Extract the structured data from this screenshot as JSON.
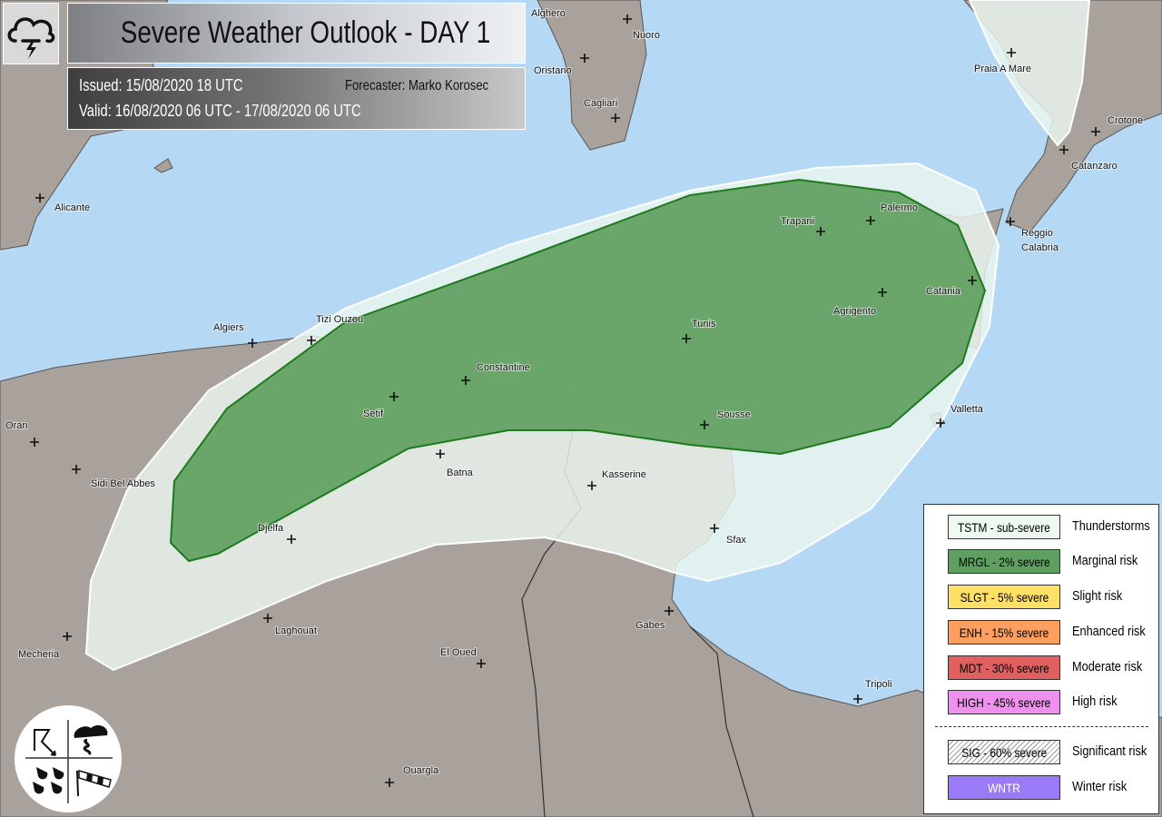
{
  "header": {
    "title": "Severe Weather Outlook - DAY 1",
    "issued": "Issued: 15/08/2020 18 UTC",
    "forecaster": "Forecaster: Marko Korosec",
    "valid": "Valid: 16/08/2020 06 UTC - 17/08/2020 06 UTC",
    "icon": "thunderstorm-cloud-icon"
  },
  "colors": {
    "sea": "#b5d8f5",
    "land": "#a9a19b",
    "tstm": "#eaf7ef",
    "mrgl": "#5fa05f",
    "mrgl_outline": "#1e7a1e"
  },
  "map": {
    "risk_areas": [
      {
        "category": "TSTM",
        "region": "western Algeria to Sicily and Malta"
      },
      {
        "category": "TSTM",
        "region": "Calabria"
      },
      {
        "category": "MRGL",
        "region": "northern Algeria, Tunisia, Sicily"
      }
    ],
    "cities": [
      {
        "name": "Alghero"
      },
      {
        "name": "Nuoro"
      },
      {
        "name": "Oristano"
      },
      {
        "name": "Cagliari"
      },
      {
        "name": "Alicante"
      },
      {
        "name": "Algiers"
      },
      {
        "name": "Tizi Ouzou"
      },
      {
        "name": "Constantine"
      },
      {
        "name": "Setif"
      },
      {
        "name": "Batna"
      },
      {
        "name": "Djelfa"
      },
      {
        "name": "Laghouat"
      },
      {
        "name": "Mecheria"
      },
      {
        "name": "El Oued"
      },
      {
        "name": "Ouargla"
      },
      {
        "name": "Oran"
      },
      {
        "name": "Sidi Bel Abbes"
      },
      {
        "name": "Kasserine"
      },
      {
        "name": "Sousse"
      },
      {
        "name": "Sfax"
      },
      {
        "name": "Gabes"
      },
      {
        "name": "Tripoli"
      },
      {
        "name": "Tunis"
      },
      {
        "name": "Trapani"
      },
      {
        "name": "Palermo"
      },
      {
        "name": "Agrigento"
      },
      {
        "name": "Catania"
      },
      {
        "name": "Valletta"
      },
      {
        "name": "Reggio Calabria"
      },
      {
        "name": "Catanzaro"
      },
      {
        "name": "Crotone"
      },
      {
        "name": "Praia A Mare"
      }
    ]
  },
  "legend": {
    "items": [
      {
        "code": "TSTM - sub-severe",
        "desc": "Thunderstorms",
        "color": "#eefaf0",
        "text_color": "#111"
      },
      {
        "code": "MRGL - 2% severe",
        "desc": "Marginal risk",
        "color": "#5f9f62",
        "text_color": "#111"
      },
      {
        "code": "SLGT - 5% severe",
        "desc": "Slight risk",
        "color": "#ffe066",
        "text_color": "#111"
      },
      {
        "code": "ENH - 15% severe",
        "desc": "Enhanced risk",
        "color": "#ff9f5f",
        "text_color": "#111"
      },
      {
        "code": "MDT - 30% severe",
        "desc": "Moderate risk",
        "color": "#e06060",
        "text_color": "#111"
      },
      {
        "code": "HIGH - 45% severe",
        "desc": "High risk",
        "color": "#ee90ee",
        "text_color": "#111"
      },
      {
        "code": "SIG - 60% severe",
        "desc": "Significant risk",
        "color": "hatch",
        "text_color": "#111"
      },
      {
        "code": "WNTR",
        "desc": "Winter risk",
        "color": "#9a7af7",
        "text_color": "#fff"
      }
    ]
  },
  "emblem": {
    "icons": [
      "lightning-bolt-icon",
      "tornado-icon",
      "hail-rain-icon",
      "windsock-icon"
    ]
  }
}
